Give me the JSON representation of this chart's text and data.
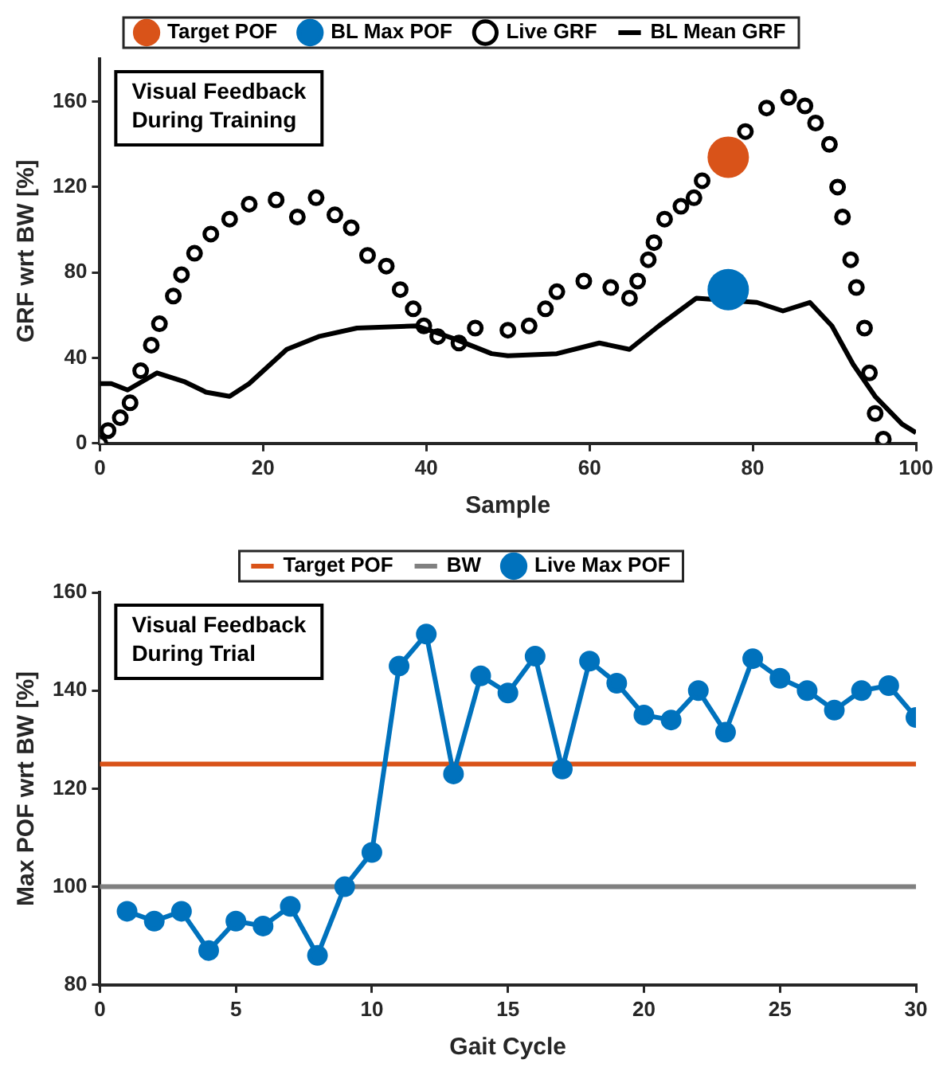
{
  "chart_data": [
    {
      "type": "scatter",
      "xlabel": "Sample",
      "ylabel": "GRF wrt BW [%]",
      "xlim": [
        0,
        100
      ],
      "xticks": [
        0,
        20,
        40,
        60,
        80,
        100
      ],
      "ylim": [
        0,
        180
      ],
      "yticks": [
        0,
        40,
        80,
        120,
        160
      ],
      "legend": "top",
      "annotations": [
        "Visual Feedback\nDuring Training"
      ],
      "series": [
        {
          "name": "Target POF",
          "marker": "circle",
          "color": "#d95319",
          "x": [
            77
          ],
          "values": [
            134
          ]
        },
        {
          "name": "BL Max POF",
          "marker": "circle",
          "color": "#0072bd",
          "x": [
            77
          ],
          "values": [
            72
          ]
        },
        {
          "name": "Live GRF",
          "marker": "circle",
          "color": "#000000",
          "x": [
            0,
            1,
            2.5,
            3.7,
            5,
            6.3,
            7.3,
            9,
            10,
            11.6,
            13.6,
            15.9,
            18.3,
            21.6,
            24.2,
            26.5,
            28.8,
            30.8,
            32.8,
            35.1,
            36.8,
            38.4,
            39.7,
            41.4,
            44,
            46,
            50,
            52.6,
            54.6,
            56,
            59.3,
            62.6,
            64.9,
            65.9,
            67.2,
            67.9,
            69.2,
            71.2,
            72.8,
            73.8,
            79.1,
            81.7,
            84.4,
            86.4,
            87.7,
            89.4,
            90.4,
            91,
            92,
            92.7,
            93.7,
            94.3,
            95,
            96
          ],
          "values": [
            0,
            6,
            12,
            19,
            34,
            46,
            56,
            69,
            79,
            89,
            98,
            105,
            112,
            114,
            106,
            115,
            107,
            101,
            88,
            83,
            72,
            63,
            55,
            50,
            47,
            54,
            53,
            55,
            63,
            71,
            76,
            73,
            68,
            76,
            86,
            94,
            105,
            111,
            115,
            123,
            146,
            157,
            162,
            158,
            150,
            140,
            120,
            106,
            86,
            73,
            54,
            33,
            14,
            2
          ]
        },
        {
          "name": "BL Mean GRF",
          "type": "line",
          "marker": "none",
          "color": "#000000",
          "x": [
            0,
            1.4,
            3.4,
            7,
            10.3,
            13,
            15.9,
            18.3,
            22.9,
            26.8,
            31.5,
            38.8,
            43.4,
            48,
            50,
            56,
            61.2,
            64.9,
            68.5,
            73.1,
            76.4,
            80.5,
            83.7,
            87,
            89.7,
            92.3,
            95,
            98.3,
            100
          ],
          "values": [
            28,
            28,
            25,
            33,
            29,
            24,
            22,
            28,
            44,
            50,
            54,
            55,
            49,
            42,
            41,
            42,
            47,
            44,
            55,
            68,
            null,
            66,
            62,
            66,
            55,
            37,
            22,
            9,
            5
          ]
        }
      ]
    },
    {
      "type": "line",
      "xlabel": "Gait Cycle",
      "ylabel": "Max POF wrt BW [%]",
      "xlim": [
        0,
        30
      ],
      "xticks": [
        0,
        5,
        10,
        15,
        20,
        25,
        30
      ],
      "ylim": [
        80,
        160
      ],
      "yticks": [
        80,
        100,
        120,
        140,
        160
      ],
      "legend": "top",
      "annotations": [
        "Visual Feedback\nDuring Trial"
      ],
      "marker": "circle",
      "ref_lines": [
        {
          "axis": "y",
          "value": 125,
          "label": "Target POF",
          "color": "#d95319"
        },
        {
          "axis": "y",
          "value": 100,
          "label": "BW",
          "color": "#808080"
        }
      ],
      "series": [
        {
          "name": "Live Max POF",
          "color": "#0072bd",
          "x": [
            1,
            2,
            3,
            4,
            5,
            6,
            7,
            8,
            9,
            10,
            11,
            12,
            13,
            14,
            15,
            16,
            17,
            18,
            19,
            20,
            21,
            22,
            23,
            24,
            25,
            26,
            27,
            28,
            29,
            30
          ],
          "values": [
            95,
            93,
            95,
            87,
            93,
            92,
            96,
            86,
            100,
            107,
            145,
            151.5,
            123,
            143,
            139.5,
            147,
            124,
            146,
            141.5,
            135,
            134,
            140,
            131.5,
            146.5,
            142.5,
            140,
            136,
            140,
            141,
            134.5
          ]
        }
      ]
    }
  ]
}
